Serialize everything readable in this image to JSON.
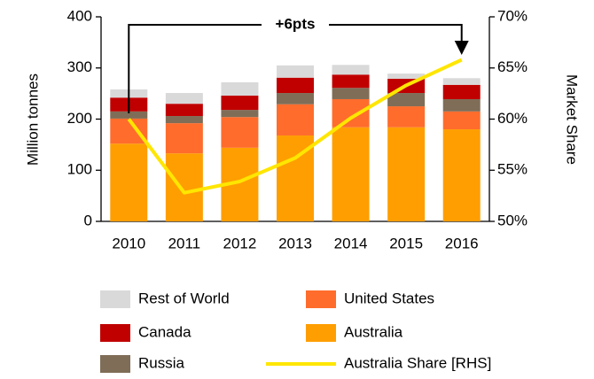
{
  "chart_data": {
    "type": "bar",
    "annotation": "+6pts",
    "ylabel": "Million tonnes",
    "y2label": "Market Share",
    "categories": [
      "2010",
      "2011",
      "2012",
      "2013",
      "2014",
      "2015",
      "2016"
    ],
    "stacked": true,
    "series": [
      {
        "name": "Australia",
        "color": "#ff9e00",
        "values": [
          152,
          133,
          144,
          168,
          184,
          184,
          180
        ]
      },
      {
        "name": "United States",
        "color": "#ff6c2c",
        "values": [
          49,
          59,
          60,
          61,
          55,
          41,
          35
        ]
      },
      {
        "name": "Russia",
        "color": "#7f6d57",
        "values": [
          14,
          14,
          14,
          22,
          22,
          26,
          24
        ]
      },
      {
        "name": "Canada",
        "color": "#c00000",
        "values": [
          27,
          24,
          28,
          30,
          26,
          28,
          28
        ]
      },
      {
        "name": "Rest of World",
        "color": "#d9d9d9",
        "values": [
          16,
          21,
          26,
          24,
          19,
          10,
          13
        ]
      },
      {
        "name": "Australia Share [RHS]",
        "color": "#ffe600",
        "type": "line",
        "axis": "y2",
        "values": [
          60,
          52.8,
          53.9,
          56.2,
          60.1,
          63.3,
          65.8
        ]
      }
    ],
    "ylim": [
      0,
      400
    ],
    "yticks": [
      0,
      100,
      200,
      300,
      400
    ],
    "y2lim": [
      50,
      70
    ],
    "y2ticks": [
      {
        "value": 50,
        "label": "50%"
      },
      {
        "value": 55,
        "label": "55%"
      },
      {
        "value": 60,
        "label": "60%"
      },
      {
        "value": 65,
        "label": "65%"
      },
      {
        "value": 70,
        "label": "70%"
      }
    ]
  }
}
